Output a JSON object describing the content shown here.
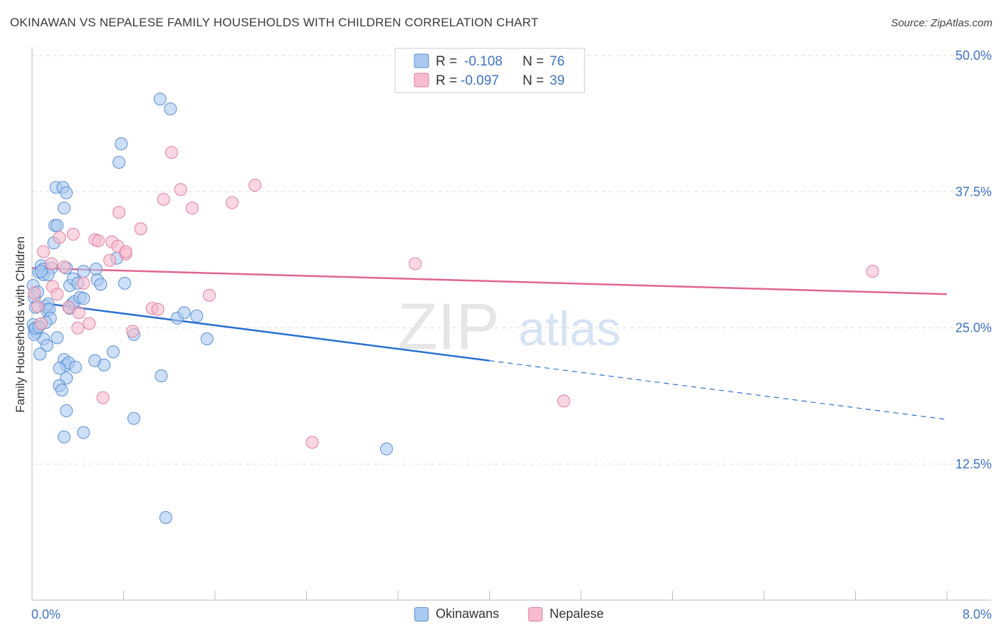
{
  "header": {
    "title": "OKINAWAN VS NEPALESE FAMILY HOUSEHOLDS WITH CHILDREN CORRELATION CHART",
    "source": "Source: ZipAtlas.com"
  },
  "watermark": {
    "zip": "ZIP",
    "atlas": "atlas"
  },
  "legend": {
    "r_label": "R =",
    "n_label": "N =",
    "rows": [
      {
        "r": "-0.108",
        "n": "76"
      },
      {
        "r": "-0.097",
        "n": "39"
      }
    ]
  },
  "colors": {
    "okinawan_fill": "#aac9f0",
    "okinawan_stroke": "#5b8fd6",
    "okinawan_line": "#2a6fd1",
    "nepalese_fill": "#f6bccd",
    "nepalese_stroke": "#e07fa0",
    "nepalese_line": "#e0668e",
    "axis_label": "#3f73c6",
    "grid": "#dddddd"
  },
  "chart_data": {
    "type": "scatter",
    "title": "OKINAWAN VS NEPALESE FAMILY HOUSEHOLDS WITH CHILDREN CORRELATION CHART",
    "xlabel": "",
    "ylabel": "Family Households with Children",
    "xlim": [
      0,
      8
    ],
    "ylim": [
      0,
      52
    ],
    "x_tick_labels": [
      "0.0%",
      "8.0%"
    ],
    "y_ticks": [
      12.5,
      25.0,
      37.5,
      50.0
    ],
    "y_tick_labels": [
      "12.5%",
      "25.0%",
      "37.5%",
      "50.0%"
    ],
    "grid": true,
    "legend_position": "top-center",
    "series": [
      {
        "name": "Okinawans",
        "r": -0.108,
        "n": 76,
        "trend": {
          "x0": 0,
          "y0": 27.4,
          "x1": 4.0,
          "y1": 22.0,
          "dashed_to_x": 8.0,
          "dashed_to_y": 16.6
        },
        "points": [
          [
            0.01,
            28.9
          ],
          [
            0.02,
            27.8
          ],
          [
            0.03,
            26.9
          ],
          [
            0.01,
            25.3
          ],
          [
            0.02,
            24.9
          ],
          [
            0.04,
            24.6
          ],
          [
            0.05,
            28.3
          ],
          [
            0.06,
            30.1
          ],
          [
            0.08,
            30.7
          ],
          [
            0.1,
            30.4
          ],
          [
            0.1,
            29.9
          ],
          [
            0.12,
            27.0
          ],
          [
            0.13,
            26.6
          ],
          [
            0.14,
            27.2
          ],
          [
            0.15,
            26.7
          ],
          [
            0.16,
            25.9
          ],
          [
            0.17,
            30.5
          ],
          [
            0.19,
            32.8
          ],
          [
            0.2,
            34.4
          ],
          [
            0.21,
            37.9
          ],
          [
            0.27,
            37.9
          ],
          [
            0.28,
            36.0
          ],
          [
            0.3,
            37.4
          ],
          [
            0.22,
            34.4
          ],
          [
            0.3,
            30.5
          ],
          [
            0.33,
            28.9
          ],
          [
            0.36,
            29.5
          ],
          [
            0.4,
            29.1
          ],
          [
            0.33,
            26.8
          ],
          [
            0.35,
            27.2
          ],
          [
            0.37,
            27.4
          ],
          [
            0.42,
            27.8
          ],
          [
            0.45,
            27.7
          ],
          [
            0.12,
            25.5
          ],
          [
            0.1,
            24.0
          ],
          [
            0.13,
            23.4
          ],
          [
            0.07,
            22.6
          ],
          [
            0.22,
            24.1
          ],
          [
            0.28,
            22.1
          ],
          [
            0.3,
            21.6
          ],
          [
            0.32,
            21.8
          ],
          [
            0.38,
            21.4
          ],
          [
            0.24,
            21.3
          ],
          [
            0.3,
            20.4
          ],
          [
            0.24,
            19.7
          ],
          [
            0.26,
            19.3
          ],
          [
            0.3,
            17.4
          ],
          [
            0.45,
            30.2
          ],
          [
            0.56,
            30.4
          ],
          [
            0.57,
            29.4
          ],
          [
            0.6,
            29.0
          ],
          [
            0.55,
            22.0
          ],
          [
            0.63,
            21.6
          ],
          [
            0.71,
            22.8
          ],
          [
            0.74,
            31.4
          ],
          [
            0.76,
            40.2
          ],
          [
            0.78,
            41.9
          ],
          [
            0.81,
            29.1
          ],
          [
            0.89,
            24.4
          ],
          [
            0.89,
            16.7
          ],
          [
            1.12,
            46.0
          ],
          [
            1.13,
            20.6
          ],
          [
            1.21,
            45.1
          ],
          [
            1.27,
            25.9
          ],
          [
            1.33,
            26.4
          ],
          [
            1.44,
            26.1
          ],
          [
            1.53,
            24.0
          ],
          [
            0.28,
            15.0
          ],
          [
            0.45,
            15.4
          ],
          [
            1.17,
            7.6
          ],
          [
            3.1,
            13.9
          ],
          [
            0.02,
            24.4
          ],
          [
            0.03,
            25.0
          ],
          [
            0.06,
            25.1
          ],
          [
            0.14,
            29.9
          ],
          [
            0.08,
            30.2
          ]
        ]
      },
      {
        "name": "Nepalese",
        "r": -0.097,
        "n": 39,
        "trend": {
          "x0": 0,
          "y0": 30.5,
          "x1": 8.0,
          "y1": 28.1
        },
        "points": [
          [
            0.02,
            28.2
          ],
          [
            0.05,
            27.0
          ],
          [
            0.08,
            25.4
          ],
          [
            0.1,
            32.0
          ],
          [
            0.17,
            30.9
          ],
          [
            0.18,
            28.8
          ],
          [
            0.22,
            28.1
          ],
          [
            0.24,
            33.3
          ],
          [
            0.28,
            30.6
          ],
          [
            0.32,
            26.9
          ],
          [
            0.36,
            33.6
          ],
          [
            0.41,
            26.4
          ],
          [
            0.4,
            25.0
          ],
          [
            0.45,
            29.1
          ],
          [
            0.5,
            25.4
          ],
          [
            0.55,
            33.1
          ],
          [
            0.58,
            33.0
          ],
          [
            0.62,
            18.6
          ],
          [
            0.68,
            31.2
          ],
          [
            0.7,
            32.9
          ],
          [
            0.75,
            32.5
          ],
          [
            0.76,
            35.6
          ],
          [
            0.82,
            31.8
          ],
          [
            0.82,
            32.0
          ],
          [
            0.88,
            24.7
          ],
          [
            0.95,
            34.1
          ],
          [
            1.05,
            26.8
          ],
          [
            1.1,
            26.7
          ],
          [
            1.15,
            36.8
          ],
          [
            1.22,
            41.1
          ],
          [
            1.3,
            37.7
          ],
          [
            1.4,
            36.0
          ],
          [
            1.55,
            28.0
          ],
          [
            1.75,
            36.5
          ],
          [
            1.95,
            38.1
          ],
          [
            2.45,
            14.5
          ],
          [
            3.35,
            30.9
          ],
          [
            4.65,
            18.3
          ],
          [
            7.35,
            30.2
          ]
        ]
      }
    ]
  }
}
